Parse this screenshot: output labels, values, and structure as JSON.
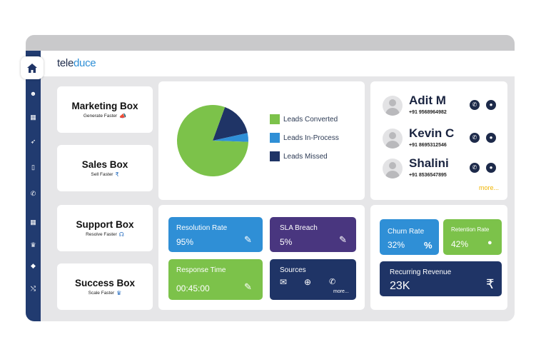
{
  "app": {
    "logo_part1": "tele",
    "logo_part2": "duce"
  },
  "sidebar": {
    "items": [
      {
        "name": "home-icon",
        "glyph": "⌂"
      },
      {
        "name": "group-icon",
        "glyph": "☻"
      },
      {
        "name": "grid-icon",
        "glyph": "▦"
      },
      {
        "name": "rocket-icon",
        "glyph": "➶"
      },
      {
        "name": "mobile-icon",
        "glyph": "▯"
      },
      {
        "name": "phone-icon",
        "glyph": "✆"
      },
      {
        "name": "apps-icon",
        "glyph": "▦"
      },
      {
        "name": "trophy-icon",
        "glyph": "♛"
      },
      {
        "name": "tag-icon",
        "glyph": "◆"
      },
      {
        "name": "shuffle-icon",
        "glyph": "⤭"
      }
    ]
  },
  "boxes": [
    {
      "title": "Marketing Box",
      "subtitle": "Generate Faster",
      "icon": "megaphone-icon",
      "glyph": "📣"
    },
    {
      "title": "Sales Box",
      "subtitle": "Sell Faster",
      "icon": "rupee-icon",
      "glyph": "₹"
    },
    {
      "title": "Support Box",
      "subtitle": "Resolve Faster",
      "icon": "headset-icon",
      "glyph": "☊"
    },
    {
      "title": "Success Box",
      "subtitle": "Scale Faster",
      "icon": "trophy-icon",
      "glyph": "♛"
    }
  ],
  "chart_data": {
    "type": "pie",
    "labels": [
      "Leads Converted",
      "Leads In-Process",
      "Leads Missed"
    ],
    "values": [
      80,
      4,
      16
    ],
    "colors": [
      "#7cc24a",
      "#2f8fd6",
      "#1f3466"
    ],
    "legend_position": "right"
  },
  "contacts": [
    {
      "name": "Adit M",
      "phone": "+91 9568964982"
    },
    {
      "name": "Kevin C",
      "phone": "+91 8695312546"
    },
    {
      "name": "Shalini",
      "phone": "+91 8536547895"
    }
  ],
  "contacts_more": "more...",
  "tiles": {
    "resolution": {
      "label": "Resolution Rate",
      "value": "95%"
    },
    "sla": {
      "label": "SLA Breach",
      "value": "5%"
    },
    "response": {
      "label": "Response Time",
      "value": "00:45:00"
    },
    "sources": {
      "label": "Sources",
      "more": "more..."
    },
    "churn": {
      "label": "Churn Rate",
      "value": "32%",
      "symbol": "%"
    },
    "retention": {
      "label": "Retention Rate",
      "value": "42%"
    },
    "revenue": {
      "label": "Recurring Revenue",
      "value": "23K",
      "symbol": "₹"
    }
  },
  "colors": {
    "sidebar": "#213b70",
    "blue": "#2f8fd6",
    "purple": "#49367f",
    "green": "#7cc24a",
    "navy": "#1f3466",
    "more": "#f0b400"
  }
}
